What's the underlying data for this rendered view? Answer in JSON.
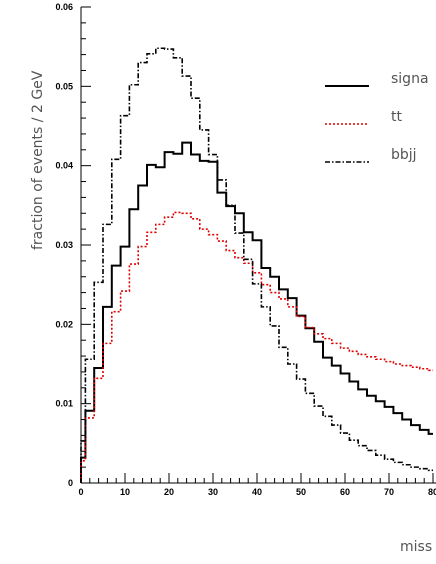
{
  "chart_data": {
    "type": "line",
    "ylabel": "fraction of events / 2 GeV",
    "xlabel": "miss",
    "xlim": [
      0,
      80
    ],
    "ylim": [
      0,
      0.06
    ],
    "x_ticks": [
      "0",
      "10",
      "20",
      "30",
      "40",
      "50",
      "60",
      "70",
      "80"
    ],
    "y_ticks": [
      "0",
      "0.01",
      "0.02",
      "0.03",
      "0.04",
      "0.05",
      "0.06"
    ],
    "bin_width": 1,
    "legend_position": "right",
    "series": [
      {
        "name": "signa",
        "color": "#000000",
        "style": "solid",
        "values": [
          0.0032,
          0.0091,
          0.0091,
          0.0145,
          0.0145,
          0.0222,
          0.0222,
          0.0274,
          0.0274,
          0.0298,
          0.0298,
          0.0345,
          0.0345,
          0.0375,
          0.0375,
          0.0401,
          0.0401,
          0.0398,
          0.0398,
          0.0417,
          0.0417,
          0.0415,
          0.0415,
          0.0429,
          0.0429,
          0.0414,
          0.0414,
          0.0406,
          0.0406,
          0.0405,
          0.0405,
          0.0366,
          0.0366,
          0.0349,
          0.0349,
          0.034,
          0.034,
          0.0316,
          0.0316,
          0.0306,
          0.0306,
          0.0271,
          0.0271,
          0.026,
          0.026,
          0.0244,
          0.0244,
          0.0233,
          0.0233,
          0.0211,
          0.0211,
          0.0195,
          0.0195,
          0.0178,
          0.0178,
          0.0158,
          0.0158,
          0.0148,
          0.0148,
          0.0138,
          0.0138,
          0.0128,
          0.0128,
          0.0118,
          0.0118,
          0.011,
          0.011,
          0.0103,
          0.0103,
          0.0096,
          0.0096,
          0.0088,
          0.0088,
          0.008,
          0.008,
          0.0073,
          0.0073,
          0.0067,
          0.0067,
          0.0062
        ]
      },
      {
        "name": "tt",
        "color": "#e00000",
        "style": "dotted",
        "values": [
          0.0028,
          0.0082,
          0.0082,
          0.0132,
          0.0132,
          0.0176,
          0.0176,
          0.0216,
          0.0216,
          0.0242,
          0.0242,
          0.0276,
          0.0276,
          0.0298,
          0.0298,
          0.0316,
          0.0316,
          0.0326,
          0.0326,
          0.0335,
          0.0335,
          0.0341,
          0.0341,
          0.034,
          0.034,
          0.0333,
          0.0333,
          0.032,
          0.032,
          0.0313,
          0.0313,
          0.0305,
          0.0305,
          0.0293,
          0.0293,
          0.0284,
          0.0284,
          0.0277,
          0.0277,
          0.0265,
          0.0265,
          0.025,
          0.025,
          0.024,
          0.024,
          0.0232,
          0.0232,
          0.0222,
          0.0222,
          0.021,
          0.021,
          0.0196,
          0.0196,
          0.0188,
          0.0188,
          0.0182,
          0.0182,
          0.0176,
          0.0176,
          0.017,
          0.017,
          0.0166,
          0.0166,
          0.0162,
          0.0162,
          0.0159,
          0.0159,
          0.0156,
          0.0156,
          0.0153,
          0.0153,
          0.015,
          0.015,
          0.0148,
          0.0148,
          0.0146,
          0.0146,
          0.0144,
          0.0144,
          0.0142
        ]
      },
      {
        "name": "bbjj",
        "color": "#000000",
        "style": "dashdot",
        "values": [
          0.0053,
          0.0156,
          0.0156,
          0.0253,
          0.0253,
          0.0326,
          0.0326,
          0.0408,
          0.0408,
          0.0463,
          0.0463,
          0.0502,
          0.0502,
          0.053,
          0.053,
          0.0541,
          0.0541,
          0.0548,
          0.0548,
          0.0547,
          0.0547,
          0.0536,
          0.0536,
          0.0513,
          0.0513,
          0.0485,
          0.0485,
          0.0445,
          0.0445,
          0.0414,
          0.0414,
          0.0382,
          0.0382,
          0.035,
          0.035,
          0.0315,
          0.0315,
          0.0282,
          0.0282,
          0.0251,
          0.0251,
          0.0222,
          0.0222,
          0.0198,
          0.0198,
          0.0171,
          0.0171,
          0.015,
          0.015,
          0.0131,
          0.0131,
          0.0113,
          0.0113,
          0.0097,
          0.0097,
          0.0084,
          0.0084,
          0.0073,
          0.0073,
          0.0063,
          0.0063,
          0.0054,
          0.0054,
          0.0047,
          0.0047,
          0.0041,
          0.0041,
          0.0035,
          0.0035,
          0.003,
          0.003,
          0.0026,
          0.0026,
          0.0023,
          0.0023,
          0.002,
          0.002,
          0.0018,
          0.0018,
          0.0016
        ]
      }
    ]
  }
}
